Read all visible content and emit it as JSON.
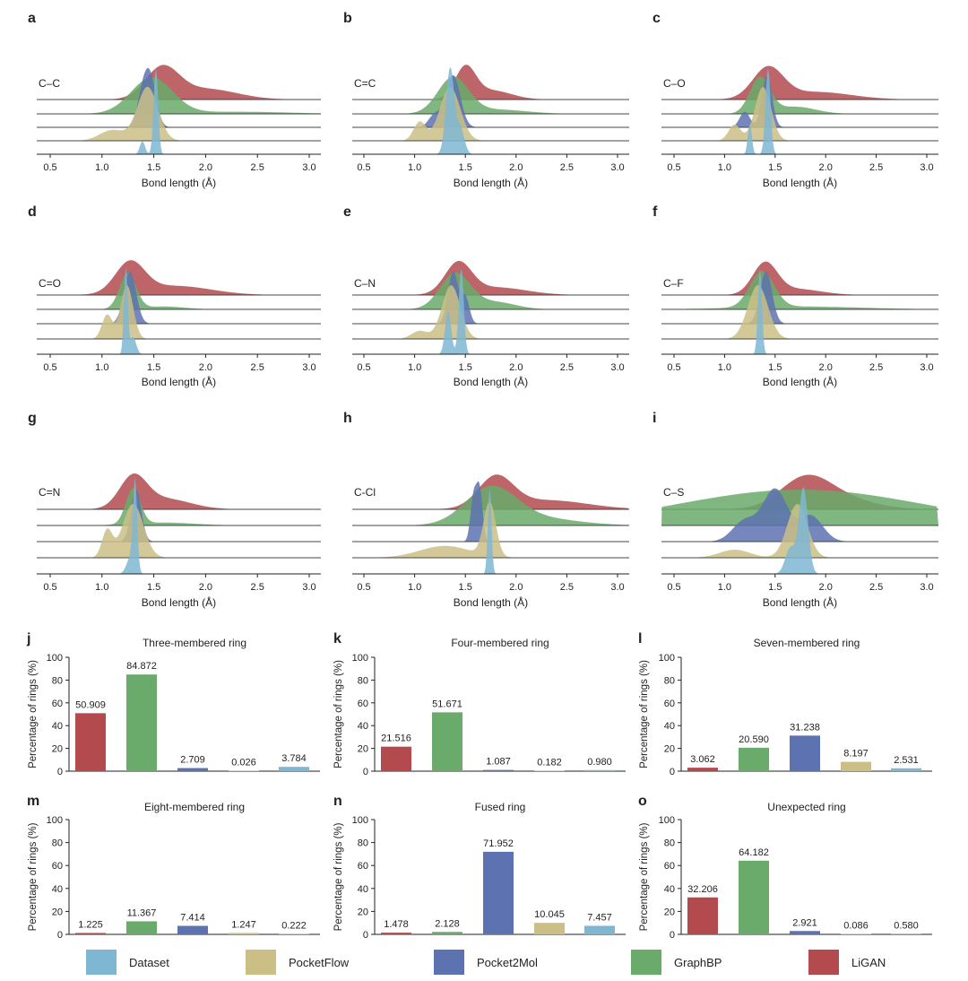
{
  "colors": {
    "Dataset": "#7fb7d2",
    "PocketFlow": "#cbbf86",
    "Pocket2Mol": "#5d72b0",
    "GraphBP": "#6aaa6a",
    "LiGAN": "#b24a4e"
  },
  "legend": [
    {
      "name": "Dataset",
      "label": "Dataset"
    },
    {
      "name": "PocketFlow",
      "label": "PocketFlow"
    },
    {
      "name": "Pocket2Mol",
      "label": "Pocket2Mol"
    },
    {
      "name": "GraphBP",
      "label": "GraphBP"
    },
    {
      "name": "LiGAN",
      "label": "LiGAN"
    }
  ],
  "chart_data": [
    {
      "panel": "a",
      "type": "area",
      "bond": "C–C",
      "xlabel": "Bond length (Å)",
      "xlim": [
        0.4,
        3.1
      ],
      "xticks": [
        "0.5",
        "1.0",
        "1.5",
        "2.0",
        "2.5",
        "3.0"
      ],
      "series": [
        {
          "name": "LiGAN",
          "peaks": [
            [
              1.58,
              0.16,
              1.0
            ],
            [
              2.0,
              0.3,
              0.35
            ]
          ]
        },
        {
          "name": "GraphBP",
          "peaks": [
            [
              1.48,
              0.2,
              1.0
            ],
            [
              2.3,
              0.5,
              0.06
            ]
          ]
        },
        {
          "name": "Pocket2Mol",
          "peaks": [
            [
              1.46,
              0.06,
              1.0
            ],
            [
              1.38,
              0.05,
              0.4
            ]
          ]
        },
        {
          "name": "PocketFlow",
          "peaks": [
            [
              1.44,
              0.1,
              1.0
            ],
            [
              1.1,
              0.12,
              0.2
            ]
          ]
        },
        {
          "name": "Dataset",
          "peaks": [
            [
              1.52,
              0.022,
              1.0
            ],
            [
              1.39,
              0.025,
              0.15
            ]
          ]
        }
      ]
    },
    {
      "panel": "b",
      "type": "area",
      "bond": "C=C",
      "xlabel": "Bond length (Å)",
      "xlim": [
        0.4,
        3.1
      ],
      "xticks": [
        "0.5",
        "1.0",
        "1.5",
        "2.0",
        "2.5",
        "3.0"
      ],
      "series": [
        {
          "name": "LiGAN",
          "peaks": [
            [
              1.5,
              0.1,
              1.0
            ],
            [
              1.75,
              0.2,
              0.3
            ]
          ]
        },
        {
          "name": "GraphBP",
          "peaks": [
            [
              1.38,
              0.15,
              1.0
            ],
            [
              1.8,
              0.3,
              0.12
            ]
          ]
        },
        {
          "name": "Pocket2Mol",
          "peaks": [
            [
              1.38,
              0.07,
              1.0
            ],
            [
              1.2,
              0.06,
              0.25
            ]
          ]
        },
        {
          "name": "PocketFlow",
          "peaks": [
            [
              1.35,
              0.1,
              1.0
            ],
            [
              1.05,
              0.06,
              0.35
            ]
          ]
        },
        {
          "name": "Dataset",
          "peaks": [
            [
              1.35,
              0.04,
              1.0
            ],
            [
              1.45,
              0.04,
              0.3
            ]
          ]
        }
      ]
    },
    {
      "panel": "c",
      "type": "area",
      "bond": "C–O",
      "xlabel": "Bond length (Å)",
      "xlim": [
        0.4,
        3.1
      ],
      "xticks": [
        "0.5",
        "1.0",
        "1.5",
        "2.0",
        "2.5",
        "3.0"
      ],
      "series": [
        {
          "name": "LiGAN",
          "peaks": [
            [
              1.43,
              0.15,
              1.0
            ],
            [
              1.9,
              0.35,
              0.25
            ]
          ]
        },
        {
          "name": "GraphBP",
          "peaks": [
            [
              1.35,
              0.1,
              1.0
            ],
            [
              1.7,
              0.2,
              0.2
            ]
          ]
        },
        {
          "name": "Pocket2Mol",
          "peaks": [
            [
              1.42,
              0.05,
              1.0
            ],
            [
              1.2,
              0.05,
              0.3
            ]
          ]
        },
        {
          "name": "PocketFlow",
          "peaks": [
            [
              1.38,
              0.08,
              1.0
            ],
            [
              1.1,
              0.06,
              0.3
            ]
          ]
        },
        {
          "name": "Dataset",
          "peaks": [
            [
              1.43,
              0.025,
              1.0
            ],
            [
              1.25,
              0.02,
              0.35
            ]
          ]
        }
      ]
    },
    {
      "panel": "d",
      "type": "area",
      "bond": "C=O",
      "xlabel": "Bond length (Å)",
      "xlim": [
        0.4,
        3.1
      ],
      "xticks": [
        "0.5",
        "1.0",
        "1.5",
        "2.0",
        "2.5",
        "3.0"
      ],
      "series": [
        {
          "name": "LiGAN",
          "peaks": [
            [
              1.27,
              0.14,
              1.0
            ],
            [
              1.7,
              0.35,
              0.3
            ]
          ]
        },
        {
          "name": "GraphBP",
          "peaks": [
            [
              1.25,
              0.08,
              1.0
            ],
            [
              1.6,
              0.2,
              0.08
            ]
          ]
        },
        {
          "name": "Pocket2Mol",
          "peaks": [
            [
              1.27,
              0.06,
              1.0
            ]
          ]
        },
        {
          "name": "PocketFlow",
          "peaks": [
            [
              1.24,
              0.06,
              1.0
            ],
            [
              1.05,
              0.05,
              0.45
            ]
          ]
        },
        {
          "name": "Dataset",
          "peaks": [
            [
              1.23,
              0.018,
              1.0
            ],
            [
              1.3,
              0.03,
              0.2
            ]
          ]
        }
      ]
    },
    {
      "panel": "e",
      "type": "area",
      "bond": "C–N",
      "xlabel": "Bond length (Å)",
      "xlim": [
        0.4,
        3.1
      ],
      "xticks": [
        "0.5",
        "1.0",
        "1.5",
        "2.0",
        "2.5",
        "3.0"
      ],
      "series": [
        {
          "name": "LiGAN",
          "peaks": [
            [
              1.43,
              0.13,
              1.0
            ],
            [
              1.8,
              0.3,
              0.25
            ]
          ]
        },
        {
          "name": "GraphBP",
          "peaks": [
            [
              1.4,
              0.15,
              1.0
            ],
            [
              1.8,
              0.2,
              0.2
            ]
          ]
        },
        {
          "name": "Pocket2Mol",
          "peaks": [
            [
              1.38,
              0.05,
              1.0
            ],
            [
              1.5,
              0.04,
              0.5
            ]
          ]
        },
        {
          "name": "PocketFlow",
          "peaks": [
            [
              1.36,
              0.09,
              1.0
            ],
            [
              1.05,
              0.08,
              0.15
            ]
          ]
        },
        {
          "name": "Dataset",
          "peaks": [
            [
              1.46,
              0.025,
              1.0
            ],
            [
              1.33,
              0.03,
              0.5
            ]
          ]
        }
      ]
    },
    {
      "panel": "f",
      "type": "area",
      "bond": "C–F",
      "xlabel": "Bond length (Å)",
      "xlim": [
        0.4,
        3.1
      ],
      "xticks": [
        "0.5",
        "1.0",
        "1.5",
        "2.0",
        "2.5",
        "3.0"
      ],
      "series": [
        {
          "name": "LiGAN",
          "peaks": [
            [
              1.4,
              0.12,
              1.0
            ],
            [
              1.7,
              0.25,
              0.2
            ]
          ]
        },
        {
          "name": "GraphBP",
          "peaks": [
            [
              1.37,
              0.12,
              1.0
            ],
            [
              1.75,
              0.6,
              0.08
            ]
          ]
        },
        {
          "name": "Pocket2Mol",
          "peaks": [
            [
              1.41,
              0.06,
              1.0
            ]
          ]
        },
        {
          "name": "PocketFlow",
          "peaks": [
            [
              1.33,
              0.1,
              1.0
            ]
          ]
        },
        {
          "name": "Dataset",
          "peaks": [
            [
              1.35,
              0.02,
              1.0
            ]
          ]
        }
      ]
    },
    {
      "panel": "g",
      "type": "area",
      "bond": "C=N",
      "xlabel": "Bond length (Å)",
      "xlim": [
        0.4,
        3.1
      ],
      "xticks": [
        "0.5",
        "1.0",
        "1.5",
        "2.0",
        "2.5",
        "3.0"
      ],
      "series": [
        {
          "name": "LiGAN",
          "peaks": [
            [
              1.3,
              0.13,
              1.0
            ],
            [
              1.6,
              0.25,
              0.35
            ]
          ]
        },
        {
          "name": "GraphBP",
          "peaks": [
            [
              1.3,
              0.07,
              1.0
            ],
            [
              1.6,
              0.3,
              0.08
            ]
          ]
        },
        {
          "name": "Pocket2Mol",
          "peaks": [
            [
              1.33,
              0.05,
              1.0
            ]
          ]
        },
        {
          "name": "PocketFlow",
          "peaks": [
            [
              1.3,
              0.1,
              1.0
            ],
            [
              1.05,
              0.05,
              0.5
            ]
          ]
        },
        {
          "name": "Dataset",
          "peaks": [
            [
              1.32,
              0.02,
              1.0
            ],
            [
              1.28,
              0.04,
              0.2
            ]
          ]
        }
      ]
    },
    {
      "panel": "h",
      "type": "area",
      "bond": "C-Cl",
      "xlabel": "Bond length (Å)",
      "xlim": [
        0.4,
        3.1
      ],
      "xticks": [
        "0.5",
        "1.0",
        "1.5",
        "2.0",
        "2.5",
        "3.0"
      ],
      "series": [
        {
          "name": "LiGAN",
          "peaks": [
            [
              1.8,
              0.17,
              1.0
            ],
            [
              2.3,
              0.4,
              0.3
            ]
          ]
        },
        {
          "name": "GraphBP",
          "peaks": [
            [
              1.75,
              0.25,
              1.0
            ],
            [
              2.2,
              0.4,
              0.2
            ]
          ]
        },
        {
          "name": "Pocket2Mol",
          "peaks": [
            [
              1.64,
              0.03,
              1.0
            ],
            [
              1.58,
              0.03,
              0.85
            ]
          ]
        },
        {
          "name": "PocketFlow",
          "peaks": [
            [
              1.74,
              0.06,
              1.0
            ],
            [
              1.3,
              0.25,
              0.22
            ]
          ]
        },
        {
          "name": "Dataset",
          "peaks": [
            [
              1.74,
              0.018,
              1.0
            ]
          ]
        }
      ]
    },
    {
      "panel": "i",
      "type": "area",
      "bond": "C–S",
      "xlabel": "Bond length (Å)",
      "xlim": [
        0.4,
        3.1
      ],
      "xticks": [
        "0.5",
        "1.0",
        "1.5",
        "2.0",
        "2.5",
        "3.0"
      ],
      "series": [
        {
          "name": "LiGAN",
          "peaks": [
            [
              1.8,
              0.25,
              1.0
            ],
            [
              2.2,
              0.3,
              0.3
            ]
          ]
        },
        {
          "name": "GraphBP",
          "peaks": [
            [
              1.75,
              1.2,
              1.0
            ]
          ]
        },
        {
          "name": "Pocket2Mol",
          "peaks": [
            [
              1.5,
              0.12,
              1.0
            ],
            [
              1.2,
              0.12,
              0.4
            ],
            [
              1.85,
              0.12,
              0.5
            ]
          ]
        },
        {
          "name": "PocketFlow",
          "peaks": [
            [
              1.72,
              0.1,
              1.0
            ],
            [
              1.1,
              0.15,
              0.15
            ]
          ]
        },
        {
          "name": "Dataset",
          "peaks": [
            [
              1.78,
              0.045,
              1.0
            ],
            [
              1.65,
              0.05,
              0.3
            ]
          ]
        }
      ]
    },
    {
      "panel": "j",
      "type": "bar",
      "title": "Three-membered ring",
      "ylabel": "Percentage of rings (%)",
      "ylim": [
        0,
        100
      ],
      "yticks": [
        "0",
        "20",
        "40",
        "60",
        "80",
        "100"
      ],
      "categories": [
        "LiGAN",
        "GraphBP",
        "Pocket2Mol",
        "PocketFlow",
        "Dataset"
      ],
      "values": [
        50.909,
        84.872,
        2.709,
        0.026,
        3.784
      ],
      "labels": [
        "50.909",
        "84.872",
        "2.709",
        "0.026",
        "3.784"
      ]
    },
    {
      "panel": "k",
      "type": "bar",
      "title": "Four-membered ring",
      "ylabel": "Percentage of rings (%)",
      "ylim": [
        0,
        100
      ],
      "yticks": [
        "0",
        "20",
        "40",
        "60",
        "80",
        "100"
      ],
      "categories": [
        "LiGAN",
        "GraphBP",
        "Pocket2Mol",
        "PocketFlow",
        "Dataset"
      ],
      "values": [
        21.516,
        51.671,
        1.087,
        0.182,
        0.98
      ],
      "labels": [
        "21.516",
        "51.671",
        "1.087",
        "0.182",
        "0.980"
      ]
    },
    {
      "panel": "l",
      "type": "bar",
      "title": "Seven-membered ring",
      "ylabel": "Percentage of rings (%)",
      "ylim": [
        0,
        100
      ],
      "yticks": [
        "0",
        "20",
        "40",
        "60",
        "80",
        "100"
      ],
      "categories": [
        "LiGAN",
        "GraphBP",
        "Pocket2Mol",
        "PocketFlow",
        "Dataset"
      ],
      "values": [
        3.062,
        20.59,
        31.238,
        8.197,
        2.531
      ],
      "labels": [
        "3.062",
        "20.590",
        "31.238",
        "8.197",
        "2.531"
      ]
    },
    {
      "panel": "m",
      "type": "bar",
      "title": "Eight-membered ring",
      "ylabel": "Percentage of rings (%)",
      "ylim": [
        0,
        100
      ],
      "yticks": [
        "0",
        "20",
        "40",
        "60",
        "80",
        "100"
      ],
      "categories": [
        "LiGAN",
        "GraphBP",
        "Pocket2Mol",
        "PocketFlow",
        "Dataset"
      ],
      "values": [
        1.225,
        11.367,
        7.414,
        1.247,
        0.222
      ],
      "labels": [
        "1.225",
        "11.367",
        "7.414",
        "1.247",
        "0.222"
      ]
    },
    {
      "panel": "n",
      "type": "bar",
      "title": "Fused ring",
      "ylabel": "Percentage of rings (%)",
      "ylim": [
        0,
        100
      ],
      "yticks": [
        "0",
        "20",
        "40",
        "60",
        "80",
        "100"
      ],
      "categories": [
        "LiGAN",
        "GraphBP",
        "Pocket2Mol",
        "PocketFlow",
        "Dataset"
      ],
      "values": [
        1.478,
        2.128,
        71.952,
        10.045,
        7.457
      ],
      "labels": [
        "1.478",
        "2.128",
        "71.952",
        "10.045",
        "7.457"
      ]
    },
    {
      "panel": "o",
      "type": "bar",
      "title": "Unexpected ring",
      "ylabel": "Percentage of rings (%)",
      "ylim": [
        0,
        100
      ],
      "yticks": [
        "0",
        "20",
        "40",
        "60",
        "80",
        "100"
      ],
      "categories": [
        "LiGAN",
        "GraphBP",
        "Pocket2Mol",
        "PocketFlow",
        "Dataset"
      ],
      "values": [
        32.206,
        64.182,
        2.921,
        0.086,
        0.58
      ],
      "labels": [
        "32.206",
        "64.182",
        "2.921",
        "0.086",
        "0.580"
      ]
    }
  ]
}
